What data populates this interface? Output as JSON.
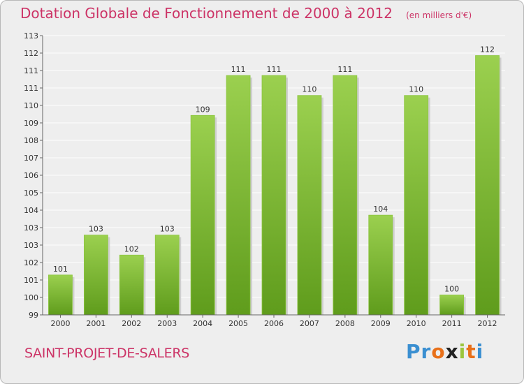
{
  "title": "Dotation Globale de Fonctionnement de 2000 à 2012",
  "unit_note": "(en milliers d'€)",
  "commune": "SAINT-PROJET-DE-SALERS",
  "logo": {
    "text": "Proxiti",
    "letters": [
      "P",
      "r",
      "o",
      "x",
      "i",
      "t",
      "i"
    ],
    "colors": [
      "#3a8fd1",
      "#3a8fd1",
      "#e8701a",
      "#222222",
      "#9bc53d",
      "#e8701a",
      "#3a8fd1"
    ]
  },
  "colors": {
    "bar_top": "#9bd04f",
    "bar_bottom": "#5f9c1c",
    "accent": "#cc3366",
    "grid": "#ffffff",
    "text": "#333333"
  },
  "chart_data": {
    "type": "bar",
    "categories": [
      "2000",
      "2001",
      "2002",
      "2003",
      "2004",
      "2005",
      "2006",
      "2007",
      "2008",
      "2009",
      "2010",
      "2011",
      "2012"
    ],
    "values": [
      101,
      103,
      102,
      103,
      109,
      111,
      111,
      110,
      111,
      104,
      110,
      100,
      112
    ],
    "data_labels": [
      "101",
      "103",
      "102",
      "103",
      "109",
      "111",
      "111",
      "110",
      "111",
      "104",
      "110",
      "100",
      "112"
    ],
    "y_ticks": [
      "113",
      "112",
      "111",
      "111",
      "110",
      "109",
      "108",
      "107",
      "106",
      "105",
      "104",
      "103",
      "103",
      "102",
      "101",
      "100",
      "99"
    ],
    "ylim": [
      99,
      113
    ],
    "grid": true,
    "xlabel": "",
    "ylabel": ""
  }
}
